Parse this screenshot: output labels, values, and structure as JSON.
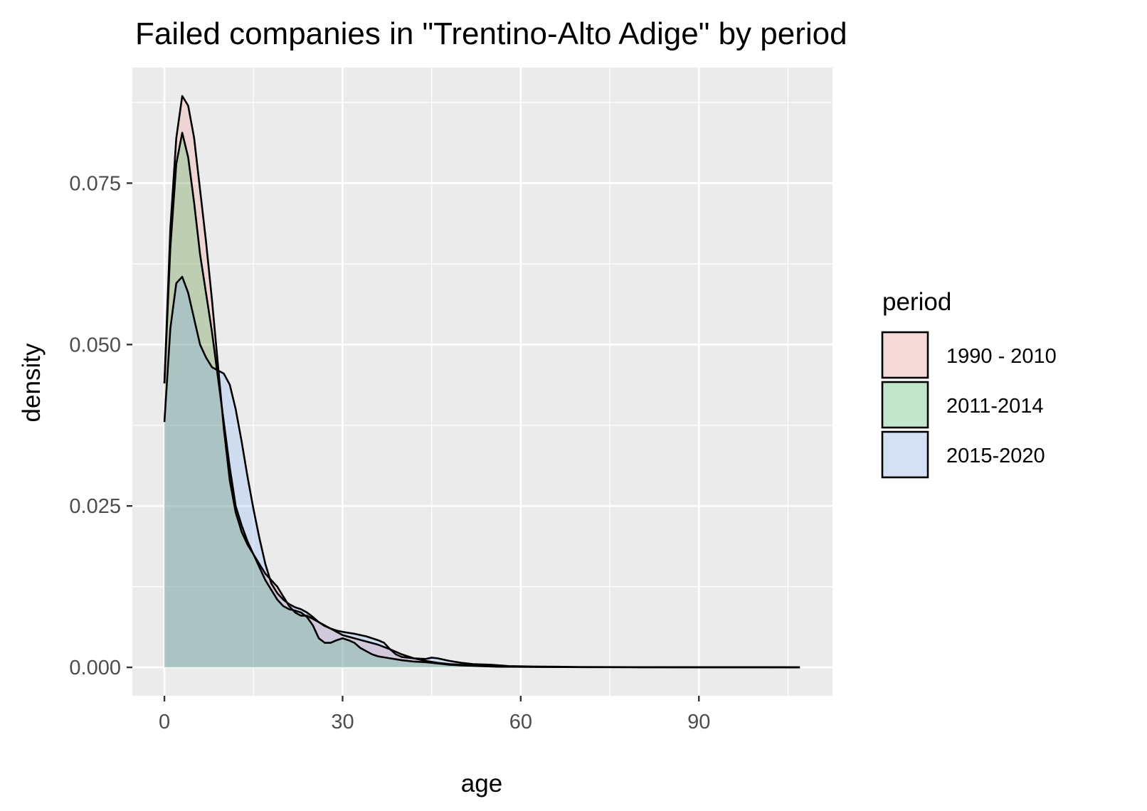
{
  "chart_data": {
    "type": "area",
    "title": "Failed companies in \"Trentino-Alto Adige\" by period",
    "xlabel": "age",
    "ylabel": "density",
    "xlim": [
      -5.4,
      112.5
    ],
    "ylim": [
      -0.0044,
      0.0929
    ],
    "x_ticks": [
      0,
      30,
      60,
      90
    ],
    "x_tick_labels": [
      "0",
      "30",
      "60",
      "90"
    ],
    "y_ticks": [
      0,
      0.025,
      0.05,
      0.075
    ],
    "y_tick_labels": [
      "0.000",
      "0.025",
      "0.050",
      "0.075"
    ],
    "grid": true,
    "legend": {
      "title": "period",
      "position": "right"
    },
    "series": [
      {
        "name": "1990 - 2010",
        "fill": "#F8766D",
        "points": [
          [
            0,
            0.044
          ],
          [
            1,
            0.068
          ],
          [
            2,
            0.082
          ],
          [
            3,
            0.0885
          ],
          [
            4,
            0.087
          ],
          [
            5,
            0.082
          ],
          [
            6,
            0.074
          ],
          [
            7,
            0.066
          ],
          [
            8,
            0.057
          ],
          [
            9,
            0.047
          ],
          [
            10,
            0.037
          ],
          [
            11,
            0.029
          ],
          [
            12,
            0.024
          ],
          [
            13,
            0.021
          ],
          [
            14,
            0.019
          ],
          [
            15,
            0.0175
          ],
          [
            16,
            0.016
          ],
          [
            17,
            0.0145
          ],
          [
            18,
            0.0135
          ],
          [
            19,
            0.0125
          ],
          [
            20,
            0.011
          ],
          [
            21,
            0.0095
          ],
          [
            22,
            0.0085
          ],
          [
            23,
            0.008
          ],
          [
            24,
            0.008
          ],
          [
            25,
            0.0075
          ],
          [
            26,
            0.007
          ],
          [
            27,
            0.0065
          ],
          [
            28,
            0.006
          ],
          [
            29,
            0.0055
          ],
          [
            30,
            0.005
          ],
          [
            32,
            0.0045
          ],
          [
            34,
            0.004
          ],
          [
            36,
            0.0035
          ],
          [
            38,
            0.0028
          ],
          [
            40,
            0.002
          ],
          [
            42,
            0.0014
          ],
          [
            44,
            0.001
          ],
          [
            46,
            0.0007
          ],
          [
            48,
            0.0005
          ],
          [
            50,
            0.0004
          ],
          [
            52,
            0.0003
          ],
          [
            55,
            0.0002
          ],
          [
            58,
            0.0001
          ],
          [
            62,
            8e-05
          ],
          [
            66,
            5e-05
          ],
          [
            70,
            3e-05
          ],
          [
            80,
            2e-05
          ],
          [
            90,
            1e-05
          ],
          [
            100,
            1e-05
          ],
          [
            107,
            0.0
          ]
        ]
      },
      {
        "name": "2011-2014",
        "fill": "#00BA38",
        "points": [
          [
            0,
            0.044
          ],
          [
            1,
            0.065
          ],
          [
            2,
            0.078
          ],
          [
            3,
            0.0828
          ],
          [
            4,
            0.079
          ],
          [
            5,
            0.072
          ],
          [
            6,
            0.064
          ],
          [
            7,
            0.058
          ],
          [
            8,
            0.052
          ],
          [
            9,
            0.045
          ],
          [
            10,
            0.038
          ],
          [
            11,
            0.031
          ],
          [
            12,
            0.025
          ],
          [
            13,
            0.022
          ],
          [
            14,
            0.0195
          ],
          [
            15,
            0.0175
          ],
          [
            16,
            0.0155
          ],
          [
            17,
            0.0135
          ],
          [
            18,
            0.012
          ],
          [
            19,
            0.0105
          ],
          [
            20,
            0.0095
          ],
          [
            21,
            0.009
          ],
          [
            22,
            0.0088
          ],
          [
            23,
            0.0085
          ],
          [
            24,
            0.0078
          ],
          [
            25,
            0.0065
          ],
          [
            26,
            0.0045
          ],
          [
            27,
            0.0038
          ],
          [
            28,
            0.0038
          ],
          [
            29,
            0.0042
          ],
          [
            30,
            0.0045
          ],
          [
            31,
            0.0042
          ],
          [
            32,
            0.0038
          ],
          [
            33,
            0.003
          ],
          [
            34,
            0.0025
          ],
          [
            35,
            0.002
          ],
          [
            36,
            0.0017
          ],
          [
            38,
            0.0014
          ],
          [
            40,
            0.0011
          ],
          [
            42,
            0.0009
          ],
          [
            44,
            0.0008
          ],
          [
            46,
            0.0006
          ],
          [
            48,
            0.0004
          ],
          [
            50,
            0.0003
          ],
          [
            53,
            0.0002
          ],
          [
            56,
            0.0001
          ],
          [
            60,
            8e-05
          ],
          [
            65,
            5e-05
          ],
          [
            70,
            4e-05
          ],
          [
            80,
            3e-05
          ],
          [
            90,
            2e-05
          ],
          [
            100,
            1e-05
          ],
          [
            107,
            0.0
          ]
        ]
      },
      {
        "name": "2015-2020",
        "fill": "#619CFF",
        "points": [
          [
            0,
            0.038
          ],
          [
            1,
            0.0525
          ],
          [
            2,
            0.0595
          ],
          [
            3,
            0.0605
          ],
          [
            4,
            0.058
          ],
          [
            5,
            0.054
          ],
          [
            6,
            0.05
          ],
          [
            7,
            0.048
          ],
          [
            8,
            0.0465
          ],
          [
            9,
            0.046
          ],
          [
            10,
            0.0455
          ],
          [
            11,
            0.0438
          ],
          [
            12,
            0.04
          ],
          [
            13,
            0.035
          ],
          [
            14,
            0.0295
          ],
          [
            15,
            0.0245
          ],
          [
            16,
            0.02
          ],
          [
            17,
            0.016
          ],
          [
            18,
            0.013
          ],
          [
            19,
            0.0115
          ],
          [
            20,
            0.0105
          ],
          [
            21,
            0.0098
          ],
          [
            22,
            0.0093
          ],
          [
            23,
            0.009
          ],
          [
            24,
            0.0085
          ],
          [
            25,
            0.0078
          ],
          [
            26,
            0.007
          ],
          [
            27,
            0.0064
          ],
          [
            28,
            0.006
          ],
          [
            29,
            0.0057
          ],
          [
            30,
            0.0055
          ],
          [
            32,
            0.0052
          ],
          [
            34,
            0.0048
          ],
          [
            36,
            0.0042
          ],
          [
            37,
            0.0038
          ],
          [
            38,
            0.0028
          ],
          [
            39,
            0.002
          ],
          [
            40,
            0.0016
          ],
          [
            42,
            0.0014
          ],
          [
            44,
            0.0013
          ],
          [
            45,
            0.0015
          ],
          [
            46,
            0.0014
          ],
          [
            48,
            0.001
          ],
          [
            50,
            0.0007
          ],
          [
            52,
            0.0005
          ],
          [
            55,
            0.0004
          ],
          [
            58,
            0.0002
          ],
          [
            62,
            0.00012
          ],
          [
            66,
            0.0001
          ],
          [
            70,
            5e-05
          ],
          [
            80,
            3e-05
          ],
          [
            90,
            2e-05
          ],
          [
            100,
            1e-05
          ],
          [
            107,
            0.0
          ]
        ]
      }
    ]
  }
}
